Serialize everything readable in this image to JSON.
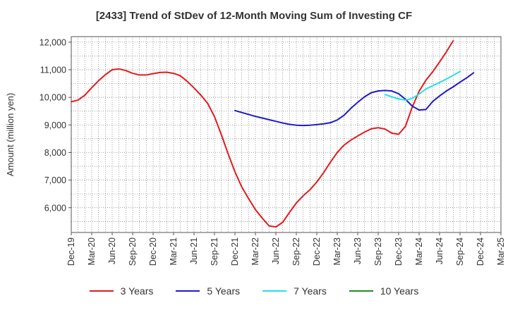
{
  "chart_data": {
    "type": "line",
    "title": "[2433]  Trend of StDev of 12-Month Moving Sum of Investing CF",
    "ylabel": "Amount (million yen)",
    "xlabel": "",
    "ylim": [
      5100,
      12200
    ],
    "yticks": [
      6000,
      7000,
      8000,
      9000,
      10000,
      11000,
      12000
    ],
    "ytick_labels": [
      "6,000",
      "7,000",
      "8,000",
      "9,000",
      "10,000",
      "11,000",
      "12,000"
    ],
    "x_start": "Dec-19",
    "x_end": "Mar-25",
    "xtick_labels": [
      "Dec-19",
      "Mar-20",
      "Jun-20",
      "Sep-20",
      "Dec-20",
      "Mar-21",
      "Jun-21",
      "Sep-21",
      "Dec-21",
      "Mar-22",
      "Jun-22",
      "Sep-22",
      "Dec-22",
      "Mar-23",
      "Jun-23",
      "Sep-23",
      "Dec-23",
      "Mar-24",
      "Jun-24",
      "Sep-24",
      "Dec-24",
      "Mar-25"
    ],
    "grid": true,
    "legend_position": "bottom",
    "series": [
      {
        "name": "3 Years",
        "color": "#e31a1c",
        "start": "Dec-19",
        "values": [
          9840,
          9900,
          10080,
          10350,
          10600,
          10820,
          11000,
          11030,
          10970,
          10870,
          10810,
          10810,
          10860,
          10900,
          10910,
          10870,
          10780,
          10580,
          10340,
          10080,
          9780,
          9300,
          8650,
          7950,
          7300,
          6750,
          6330,
          5930,
          5620,
          5340,
          5300,
          5470,
          5830,
          6170,
          6430,
          6650,
          6930,
          7270,
          7650,
          8000,
          8270,
          8450,
          8600,
          8740,
          8860,
          8900,
          8850,
          8700,
          8660,
          8950,
          9650,
          10220,
          10620,
          10930,
          11280,
          11650,
          12050
        ]
      },
      {
        "name": "5 Years",
        "color": "#1b1bcc",
        "start": "Dec-21",
        "values": [
          9520,
          9450,
          9380,
          9310,
          9250,
          9190,
          9130,
          9070,
          9020,
          8990,
          8980,
          8990,
          9010,
          9040,
          9080,
          9180,
          9350,
          9600,
          9820,
          10020,
          10170,
          10230,
          10250,
          10230,
          10130,
          9930,
          9680,
          9540,
          9560,
          9850,
          10050,
          10230,
          10380,
          10550,
          10710,
          10890
        ]
      },
      {
        "name": "7 Years",
        "color": "#22e0e8",
        "start": "Oct-23",
        "values": [
          10100,
          10020,
          9940,
          9900,
          9960,
          10120,
          10300,
          10420,
          10540,
          10660,
          10800,
          10940
        ]
      },
      {
        "name": "10 Years",
        "color": "#228b22",
        "start": "Sep-24",
        "values": []
      }
    ]
  }
}
